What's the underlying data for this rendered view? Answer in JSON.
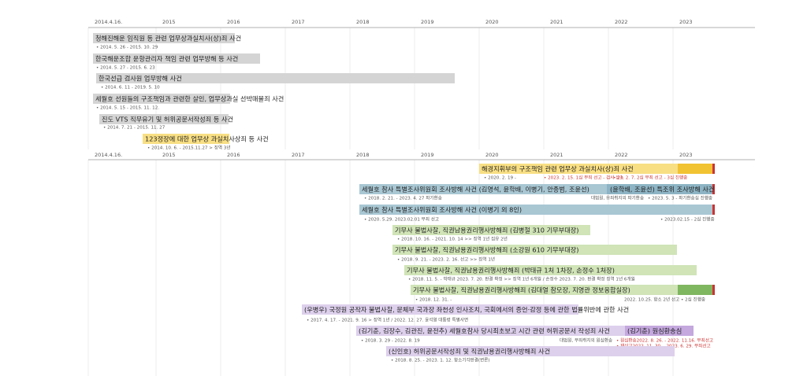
{
  "timeline_top": {
    "axis": [
      "2014.4.16.",
      "2015",
      "2016",
      "2017",
      "2018",
      "2019",
      "2020",
      "2021",
      "2022",
      "2023"
    ],
    "cases": [
      {
        "title": "청해진해운 임직원 등 관련 업무상과실치사(상)죄 사건",
        "notes": [
          "• 2014. 5. 26  -  2015. 10. 29"
        ]
      },
      {
        "title": "한국해운조합 운항관리자 책임 관련 업무방해 등 사건",
        "notes": [
          "• 2014. 5. 27  -  2015. 6. 23"
        ]
      },
      {
        "title": "한국선급 검사원 업무방해 사건",
        "notes": [
          "• 2014. 6. 11  -  2019. 5. 10"
        ]
      },
      {
        "title": "세월호 선원들의 구조책임과 관련한 살인, 업무상과실 선박매몰죄 사건",
        "notes": [
          "• 2014. 5. 15  -  2015. 11. 12."
        ]
      },
      {
        "title": "진도 VTS 직무유기 및 허위공문서작성죄 등 사건",
        "notes": [
          "• 2014. 7. 21  -  2015. 11. 27"
        ]
      },
      {
        "title": "123정장에 대한 업무상 과실치사상죄 등 사건",
        "notes": [
          "• 2014. 10. 6.  -  2015.11.27  > 징역 3년"
        ]
      }
    ]
  },
  "timeline_bottom": {
    "axis": [
      "2014.4.16.",
      "2015",
      "2016",
      "2017",
      "2018",
      "2019",
      "2020",
      "2021",
      "2022",
      "2023"
    ],
    "cases": [
      {
        "title": "해경지휘부의 구조책임 관련 업무상 과실치사(상)죄 사건",
        "notes": [
          "• 2020. 2. 19  -",
          "• 2023. 2. 15. 1심 무죄 선고 - 검사 상소",
          "• 23. 2. 7. 2심 무죄 선고 - 3심 진행중"
        ]
      },
      {
        "title": "세월호 참사 특별조사위원회 조사방해 사건 (김영석, 윤학배, 이병기, 안종범, 조윤선)",
        "title2": "(윤학배, 조윤선) 특조위 조사방해 사건",
        "notes": [
          "• 2018. 2. 21.  -  2023. 4. 27 파기환송",
          "대법원, 유죄취지의 파기환송",
          "• 2023. 5. 3 - 파기환송심 진행중"
        ]
      },
      {
        "title": "세월호 참사 특별조사위원회 조사방해 사건 (이병기 외 8인)",
        "notes": [
          "• 2020. 5.29.   2023.02.01 무죄 선고",
          "• 2023.02.15 - 2심 진행중"
        ]
      },
      {
        "title": "기무사 불법사찰, 직권남용권리행사방해죄 (김병철 310 기무부대장)",
        "notes": [
          "• 2018. 10. 16.  -  2021. 10. 14 >> 징역 1년 집유 2년"
        ]
      },
      {
        "title": "기무사 불법사찰, 직권남용권리행사방해죄 (소강원 610 기무부대장)",
        "notes": [
          "• 2018. 9. 21.  -  2023. 2. 16. 선고 >> 징역 1년"
        ]
      },
      {
        "title": "기무사 불법사찰, 직권남용권리행사방해죄 (박태규 1처 1차장, 손정수 1처장)",
        "notes": [
          "• 2018. 11. 5.  -  박태규 2023. 7. 20. 판결 확정 >> 징역 1년 6개월 / 손정수 2023. 7. 20. 판결 확정 징역 1년 6개월"
        ]
      },
      {
        "title": "기무사 불법사찰, 직권남용권리행사방해죄 (김대열 참모장, 지영관 정보융합실장)",
        "notes": [
          "• 2018. 12. 31.  -",
          "2022. 10.25. 항소 2년 선고  • 2심 진행중"
        ]
      },
      {
        "title": "(우병우) 국정원 공작자 불법사찰, 문체부 국과장 좌천성 인사조치, 국회에서의 증언·감정 등에 관한 법률위반에 관한 사건",
        "notes": [
          "• 2017. 4. 17.  -  2021. 9. 16 > 징역 1년 / 2022. 12. 27. 윤석열 대통령 특별사면"
        ]
      },
      {
        "title": "(김기춘, 김장수, 김관진, 윤전추) 세월호참사 당시최초보고 시간 관련 허위공문서 작성죄 사건",
        "title2": "(김기춘) 원심환송심",
        "notes": [
          "• 2018. 3. 29  -  2022. 8. 19",
          "대법원, 무죄취지의 원심환송",
          "• 원심환송2022. 8. 26. - 2022. 11.16. 무죄선고",
          "• 재상고2022. 11. 30. - 2023. 6. 29. 무죄선고"
        ]
      },
      {
        "title": "(신인호) 허위공문서작성죄 및 직권남용권리행사방해죄 사건",
        "notes": [
          "• 2018. 8. 25.  -  2023. 1. 12. 항소기각판결(변론)"
        ]
      }
    ]
  }
}
